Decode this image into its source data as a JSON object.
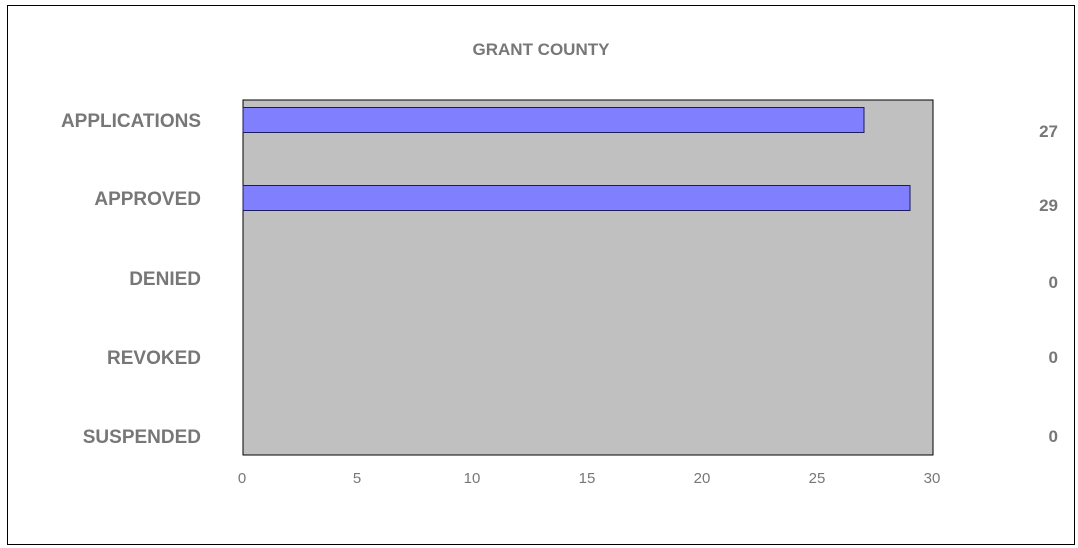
{
  "chart_data": {
    "type": "bar",
    "orientation": "horizontal",
    "title": "GRANT COUNTY",
    "categories": [
      "APPLICATIONS",
      "APPROVED",
      "DENIED",
      "REVOKED",
      "SUSPENDED"
    ],
    "values": [
      27,
      29,
      0,
      0,
      0
    ],
    "value_labels": [
      "27",
      "29",
      "0",
      "0",
      "0"
    ],
    "xlim": [
      0,
      30
    ],
    "xticks": [
      0,
      5,
      10,
      15,
      20,
      25,
      30
    ],
    "xtick_labels": [
      "0",
      "5",
      "10",
      "15",
      "20",
      "25",
      "30"
    ],
    "grid": false,
    "legend": "none",
    "colors": {
      "bar": "#8080ff",
      "bar_stroke": "#1a1a5e",
      "plot_bg": "#c0c0c0",
      "text": "#777777"
    }
  }
}
